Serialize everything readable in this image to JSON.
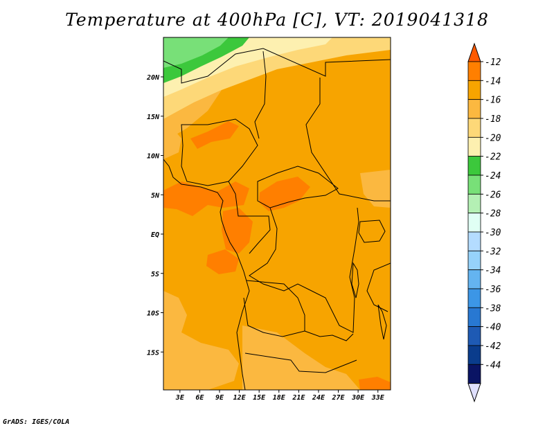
{
  "title": "Temperature at 400hPa [C], VT: 2019041318",
  "footer": "GrADS: IGES/COLA",
  "map": {
    "lat_labels": [
      {
        "lat": 20,
        "label": "20N"
      },
      {
        "lat": 15,
        "label": "15N"
      },
      {
        "lat": 10,
        "label": "10N"
      },
      {
        "lat": 5,
        "label": "5N"
      },
      {
        "lat": 0,
        "label": "EQ"
      },
      {
        "lat": -5,
        "label": "5S"
      },
      {
        "lat": -10,
        "label": "10S"
      },
      {
        "lat": -15,
        "label": "15S"
      }
    ],
    "lon_labels": [
      {
        "lon": 3,
        "label": "3E"
      },
      {
        "lon": 6,
        "label": "6E"
      },
      {
        "lon": 9,
        "label": "9E"
      },
      {
        "lon": 12,
        "label": "12E"
      },
      {
        "lon": 15,
        "label": "15E"
      },
      {
        "lon": 18,
        "label": "18E"
      },
      {
        "lon": 21,
        "label": "21E"
      },
      {
        "lon": 24,
        "label": "24E"
      },
      {
        "lon": 27,
        "label": "27E"
      },
      {
        "lon": 30,
        "label": "30E"
      },
      {
        "lon": 33,
        "label": "33E"
      }
    ],
    "colors": {
      "t_12_14": "#ff7f00",
      "t_14_16": "#f7a400",
      "t_16_18": "#fbb840",
      "t_18_20": "#fdd878",
      "t_20_22": "#fdf0b0",
      "t_22_24": "#3cc83c",
      "t_24_26": "#78e078"
    }
  },
  "colorbar": {
    "labels": [
      "-12",
      "-14",
      "-16",
      "-18",
      "-20",
      "-22",
      "-24",
      "-26",
      "-28",
      "-30",
      "-32",
      "-34",
      "-36",
      "-38",
      "-40",
      "-42",
      "-44"
    ],
    "colors": [
      "#ff5a00",
      "#ff7f00",
      "#f7a400",
      "#fbb840",
      "#fdd878",
      "#fdf0b0",
      "#3cc83c",
      "#78e078",
      "#b4f0b4",
      "#e0fff4",
      "#b4dcff",
      "#96d2fa",
      "#64b4f0",
      "#3c96e6",
      "#2878d2",
      "#1e5ab4",
      "#0a3c8c",
      "#0a1464",
      "#e0e0ff"
    ]
  }
}
